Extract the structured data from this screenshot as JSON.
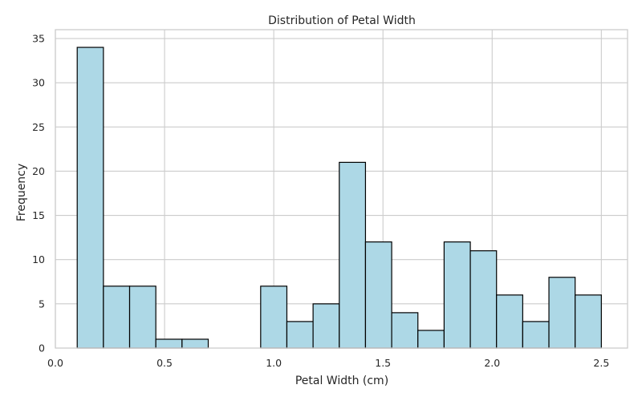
{
  "chart_data": {
    "type": "bar",
    "subtype": "histogram",
    "title": "Distribution of Petal Width",
    "xlabel": "Petal Width (cm)",
    "ylabel": "Frequency",
    "xlim": [
      0.0,
      2.62
    ],
    "ylim": [
      0,
      36
    ],
    "x_ticks": [
      0.0,
      0.5,
      1.0,
      1.5,
      2.0,
      2.5
    ],
    "x_tick_labels": [
      "0.0",
      "0.5",
      "1.0",
      "1.5",
      "2.0",
      "2.5"
    ],
    "y_ticks": [
      0,
      5,
      10,
      15,
      20,
      25,
      30,
      35
    ],
    "y_tick_labels": [
      "0",
      "5",
      "10",
      "15",
      "20",
      "25",
      "30",
      "35"
    ],
    "bin_edges": [
      0.1,
      0.22,
      0.34,
      0.46,
      0.58,
      0.7,
      0.82,
      0.94,
      1.06,
      1.18,
      1.3,
      1.42,
      1.54,
      1.66,
      1.78,
      1.9,
      2.02,
      2.14,
      2.26,
      2.38,
      2.5
    ],
    "values": [
      34,
      7,
      7,
      1,
      1,
      0,
      0,
      7,
      3,
      5,
      21,
      12,
      4,
      2,
      12,
      11,
      6,
      3,
      8,
      6
    ],
    "grid": true,
    "colors": {
      "bar_fill": "#add8e6",
      "bar_edge": "#000000",
      "grid": "#cccccc",
      "spine": "#cccccc",
      "text": "#262626"
    }
  }
}
